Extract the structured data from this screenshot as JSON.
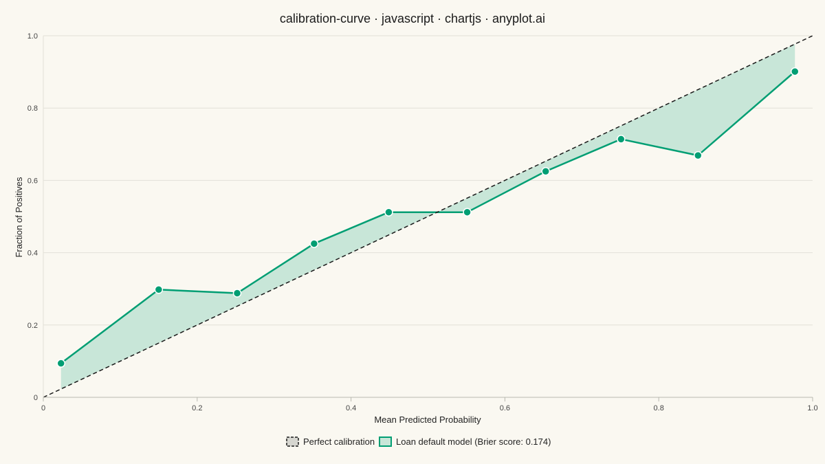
{
  "chart_data": {
    "type": "line",
    "title": "calibration-curve · javascript · chartjs · anyplot.ai",
    "xlabel": "Mean Predicted Probability",
    "ylabel": "Fraction of Positives",
    "xlim": [
      0,
      1
    ],
    "ylim": [
      0,
      1
    ],
    "x_ticks": [
      "0",
      "0.2",
      "0.4",
      "0.6",
      "0.8",
      "1.0"
    ],
    "y_ticks": [
      "0",
      "0.2",
      "0.4",
      "0.6",
      "0.8",
      "1.0"
    ],
    "grid": true,
    "legend_position": "bottom",
    "series": [
      {
        "name": "Perfect calibration",
        "style": "dashed",
        "color": "#1A1A1A",
        "points": [
          [
            0,
            0
          ],
          [
            1,
            1
          ]
        ]
      },
      {
        "name": "Loan default model (Brier score: 0.174)",
        "style": "solid",
        "color": "#009E73",
        "fill_color": "#C8E6D8",
        "points": [
          [
            0.023,
            0.094
          ],
          [
            0.15,
            0.298
          ],
          [
            0.252,
            0.288
          ],
          [
            0.352,
            0.425
          ],
          [
            0.449,
            0.512
          ],
          [
            0.551,
            0.512
          ],
          [
            0.653,
            0.625
          ],
          [
            0.751,
            0.714
          ],
          [
            0.851,
            0.669
          ],
          [
            0.977,
            0.901
          ]
        ]
      }
    ]
  }
}
